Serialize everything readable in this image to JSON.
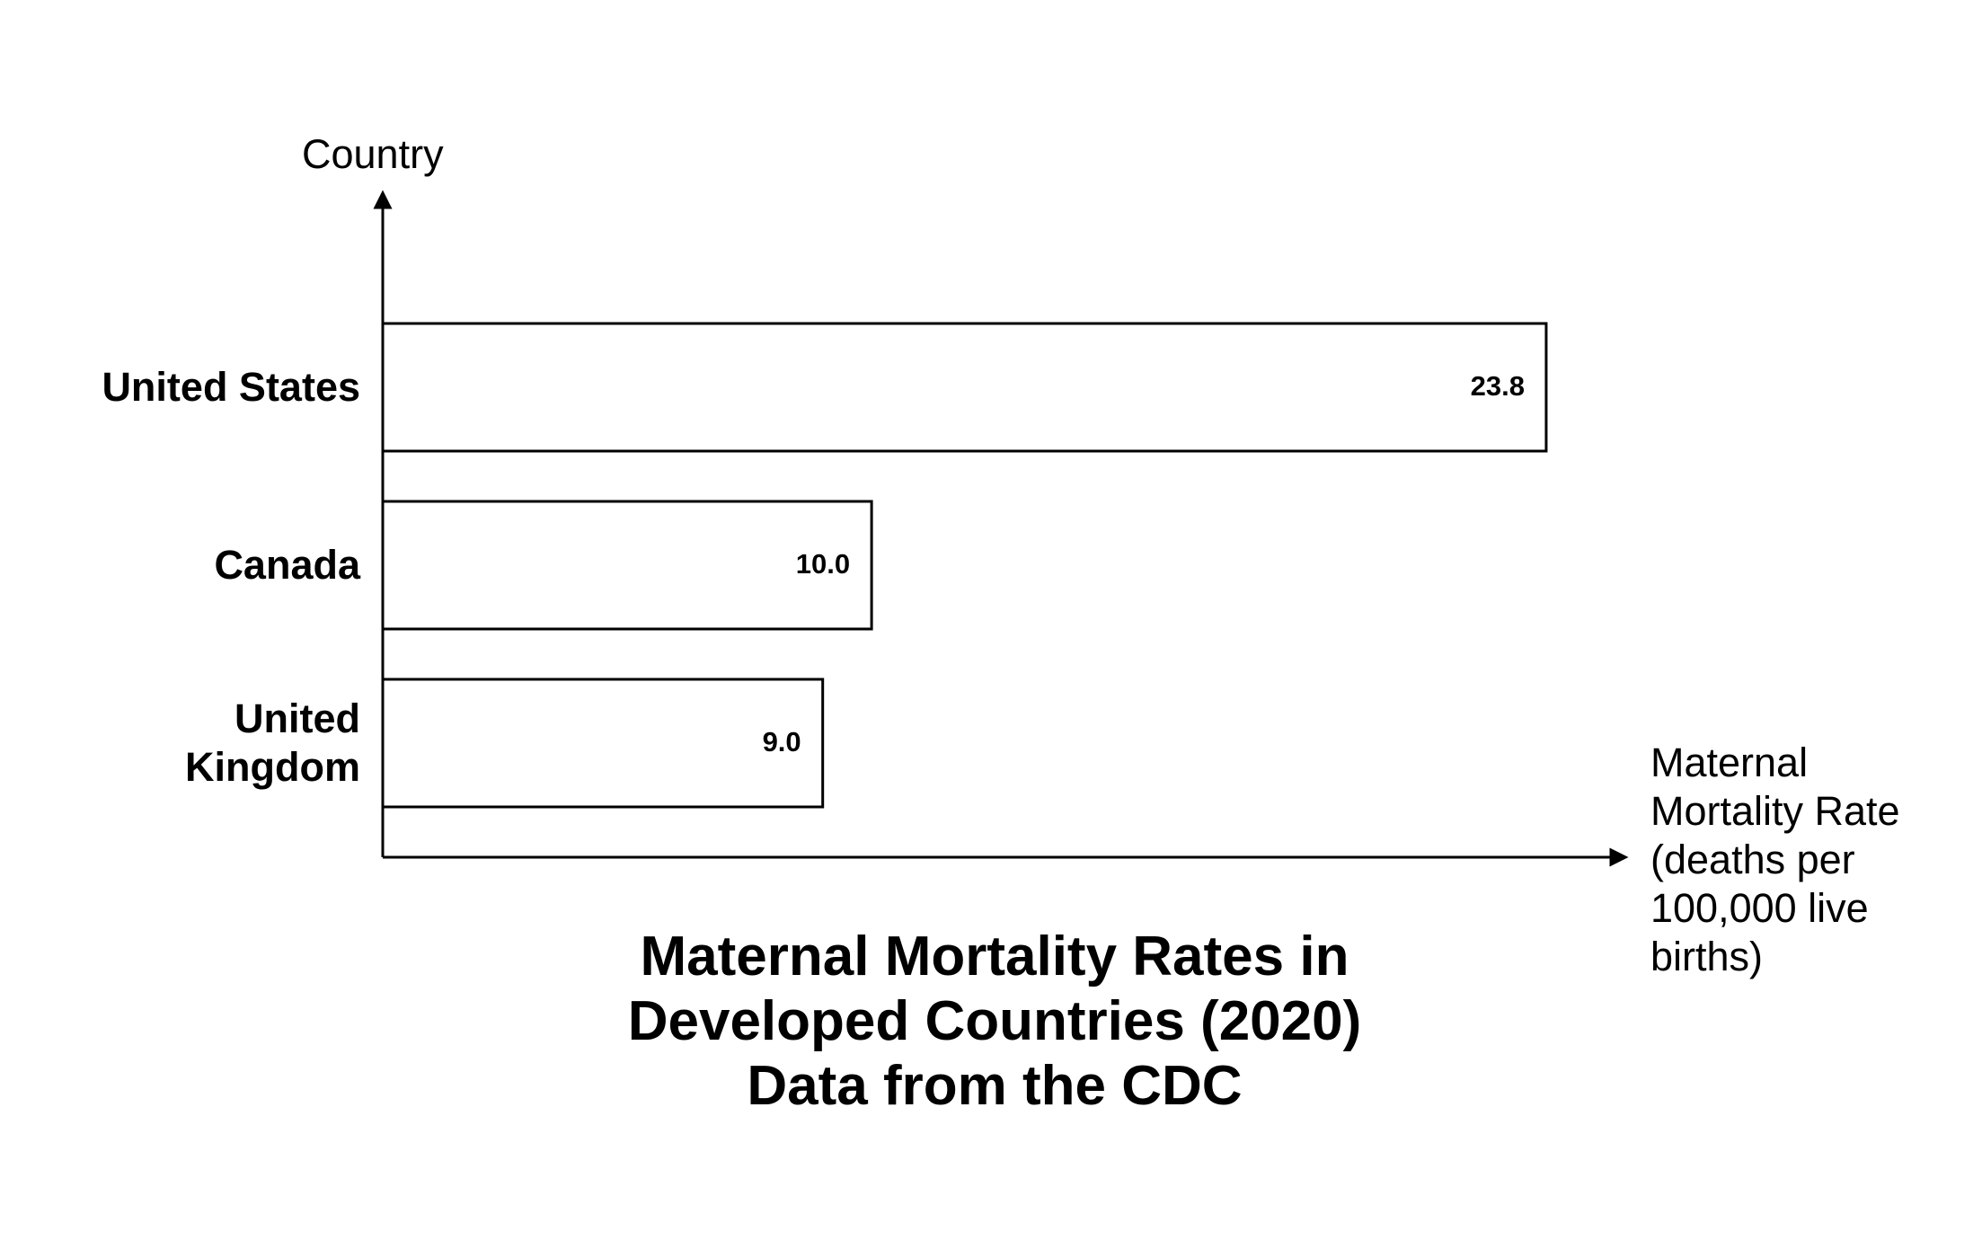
{
  "chart_data": {
    "type": "bar",
    "orientation": "horizontal",
    "title": "Maternal Mortality Rates in Developed Countries (2020)",
    "subtitle": "Data from the CDC",
    "x_label": "Maternal Mortality Rate (deaths per 100,000 live births)",
    "y_label": "Country",
    "categories": [
      "United States",
      "Canada",
      "United Kingdom"
    ],
    "values": [
      23.8,
      10.0,
      9.0
    ],
    "value_labels": [
      "23.8",
      "10.0",
      "9.0"
    ],
    "xlim": [
      0,
      25.4
    ],
    "color": "#ffffff",
    "edge_color": "#000000"
  }
}
